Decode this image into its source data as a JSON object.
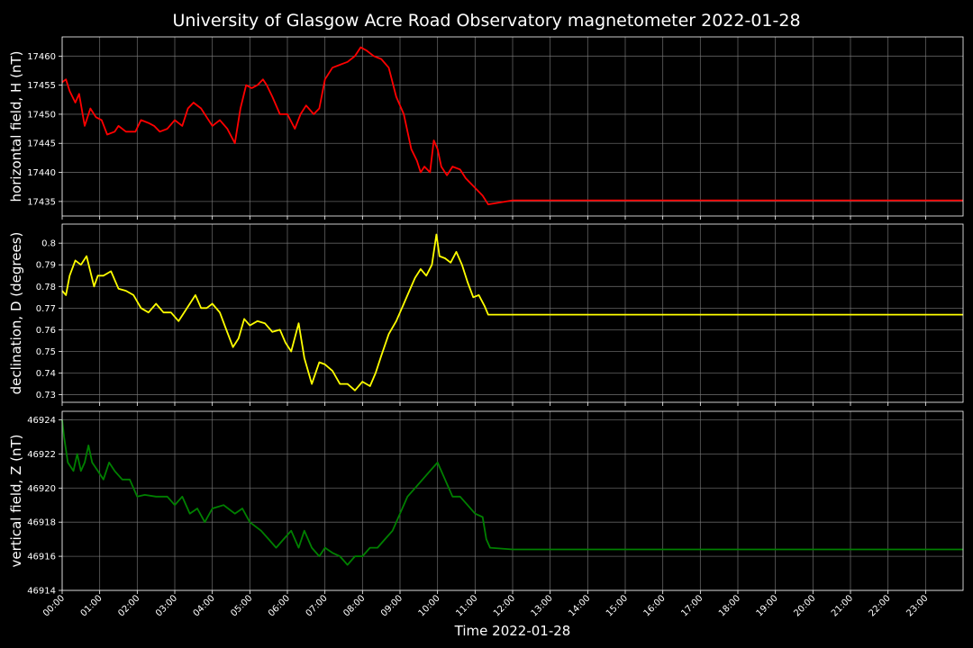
{
  "title": "University of Glasgow Acre Road Observatory magnetometer 2022-01-28",
  "xlabel": "Time 2022-01-28",
  "x_ticks": [
    "00:00",
    "01:00",
    "02:00",
    "03:00",
    "04:00",
    "05:00",
    "06:00",
    "07:00",
    "08:00",
    "09:00",
    "10:00",
    "11:00",
    "12:00",
    "13:00",
    "14:00",
    "15:00",
    "16:00",
    "17:00",
    "18:00",
    "19:00",
    "20:00",
    "21:00",
    "22:00",
    "23:00"
  ],
  "colors": {
    "background": "#000000",
    "grid": "#7a7a7a",
    "frame": "#ffffff",
    "text": "#ffffff"
  },
  "chart_data": [
    {
      "type": "line",
      "ylabel": "horizontal field, H (nT)",
      "color": "#ff0000",
      "ylim": [
        17432.5,
        17463.3
      ],
      "yticks": [
        17435,
        17440,
        17445,
        17450,
        17455,
        17460
      ],
      "x_unit": "hours since 00:00",
      "xlim": [
        0,
        24
      ],
      "grid": true,
      "x": [
        0,
        0.1,
        0.2,
        0.35,
        0.45,
        0.6,
        0.75,
        0.9,
        1.05,
        1.2,
        1.4,
        1.5,
        1.7,
        1.95,
        2.1,
        2.3,
        2.45,
        2.6,
        2.8,
        3.0,
        3.2,
        3.35,
        3.5,
        3.7,
        3.85,
        4.0,
        4.2,
        4.4,
        4.6,
        4.75,
        4.9,
        5.05,
        5.2,
        5.35,
        5.45,
        5.6,
        5.8,
        6.0,
        6.2,
        6.35,
        6.5,
        6.7,
        6.85,
        7.0,
        7.2,
        7.4,
        7.6,
        7.8,
        7.95,
        8.1,
        8.3,
        8.5,
        8.7,
        8.9,
        9.1,
        9.3,
        9.45,
        9.55,
        9.65,
        9.8,
        9.9,
        10.0,
        10.1,
        10.25,
        10.4,
        10.6,
        10.75,
        10.9,
        11.05,
        11.2,
        11.3,
        11.35,
        12,
        16,
        20,
        24
      ],
      "y": [
        17455.5,
        17456,
        17454,
        17452,
        17453.5,
        17448,
        17451,
        17449.5,
        17449,
        17446.5,
        17447,
        17448,
        17447,
        17447,
        17449,
        17448.5,
        17448,
        17447,
        17447.5,
        17449,
        17448,
        17451,
        17452,
        17451,
        17449.5,
        17448,
        17449,
        17447.5,
        17445,
        17451,
        17455,
        17454.5,
        17455,
        17456,
        17455,
        17453,
        17450,
        17450,
        17447.5,
        17450,
        17451.5,
        17450,
        17451,
        17456,
        17458,
        17458.5,
        17459,
        17460,
        17461.5,
        17461,
        17460,
        17459.5,
        17458,
        17453,
        17450,
        17444,
        17442,
        17440,
        17441,
        17440,
        17445.5,
        17444,
        17441,
        17439.5,
        17441,
        17440.5,
        17439,
        17438,
        17437,
        17436,
        17435,
        17434.5,
        17435.2,
        17435.2,
        17435.2,
        17435.2
      ]
    },
    {
      "type": "line",
      "ylabel": "declination, D (degrees)",
      "color": "#ffff00",
      "ylim": [
        0.7265,
        0.8088
      ],
      "yticks": [
        0.73,
        0.74,
        0.75,
        0.76,
        0.77,
        0.78,
        0.79,
        0.8
      ],
      "x_unit": "hours since 00:00",
      "xlim": [
        0,
        24
      ],
      "grid": true,
      "x": [
        0,
        0.1,
        0.2,
        0.35,
        0.5,
        0.65,
        0.85,
        0.95,
        1.1,
        1.3,
        1.5,
        1.7,
        1.9,
        2.1,
        2.3,
        2.5,
        2.7,
        2.9,
        3.1,
        3.25,
        3.4,
        3.55,
        3.7,
        3.85,
        4.0,
        4.2,
        4.35,
        4.55,
        4.7,
        4.85,
        5.0,
        5.2,
        5.4,
        5.6,
        5.8,
        5.95,
        6.1,
        6.3,
        6.45,
        6.65,
        6.85,
        7.0,
        7.2,
        7.4,
        7.6,
        7.8,
        8.0,
        8.2,
        8.35,
        8.5,
        8.7,
        8.9,
        9.1,
        9.25,
        9.4,
        9.55,
        9.7,
        9.85,
        9.97,
        10.05,
        10.2,
        10.35,
        10.5,
        10.65,
        10.8,
        10.95,
        11.1,
        11.25,
        11.35,
        12,
        16,
        20,
        24
      ],
      "y": [
        0.778,
        0.776,
        0.785,
        0.792,
        0.79,
        0.794,
        0.78,
        0.785,
        0.785,
        0.787,
        0.779,
        0.778,
        0.776,
        0.77,
        0.768,
        0.772,
        0.768,
        0.768,
        0.764,
        0.768,
        0.772,
        0.776,
        0.77,
        0.77,
        0.772,
        0.768,
        0.761,
        0.752,
        0.756,
        0.765,
        0.762,
        0.764,
        0.763,
        0.759,
        0.76,
        0.754,
        0.75,
        0.763,
        0.747,
        0.735,
        0.745,
        0.744,
        0.741,
        0.735,
        0.735,
        0.732,
        0.736,
        0.734,
        0.74,
        0.748,
        0.758,
        0.764,
        0.772,
        0.778,
        0.784,
        0.788,
        0.785,
        0.79,
        0.804,
        0.794,
        0.793,
        0.791,
        0.796,
        0.79,
        0.782,
        0.775,
        0.776,
        0.771,
        0.767,
        0.767,
        0.767,
        0.767,
        0.767
      ]
    },
    {
      "type": "line",
      "ylabel": "vertical field, Z (nT)",
      "color": "#008000",
      "ylim": [
        46914,
        46924.5
      ],
      "yticks": [
        46914,
        46916,
        46918,
        46920,
        46922,
        46924
      ],
      "x_unit": "hours since 00:00",
      "xlim": [
        0,
        24
      ],
      "grid": true,
      "x": [
        0,
        0.05,
        0.15,
        0.3,
        0.4,
        0.5,
        0.6,
        0.7,
        0.8,
        0.95,
        1.1,
        1.25,
        1.4,
        1.6,
        1.8,
        2.0,
        2.2,
        2.5,
        2.8,
        3.0,
        3.2,
        3.4,
        3.6,
        3.8,
        4.0,
        4.3,
        4.6,
        4.8,
        5.0,
        5.3,
        5.5,
        5.7,
        5.9,
        6.1,
        6.3,
        6.45,
        6.65,
        6.85,
        7.0,
        7.2,
        7.4,
        7.6,
        7.8,
        8.0,
        8.2,
        8.4,
        8.6,
        8.8,
        9.0,
        9.2,
        9.4,
        9.6,
        9.8,
        10.0,
        10.2,
        10.4,
        10.6,
        10.8,
        11.0,
        11.2,
        11.3,
        11.4,
        12,
        16,
        20,
        24
      ],
      "y": [
        46924,
        46923,
        46921.5,
        46921,
        46922,
        46921,
        46921.5,
        46922.5,
        46921.5,
        46921,
        46920.5,
        46921.5,
        46921,
        46920.5,
        46920.5,
        46919.5,
        46919.6,
        46919.5,
        46919.5,
        46919,
        46919.5,
        46918.5,
        46918.8,
        46918,
        46918.8,
        46919,
        46918.5,
        46918.8,
        46918,
        46917.5,
        46917,
        46916.5,
        46917,
        46917.5,
        46916.5,
        46917.5,
        46916.5,
        46916,
        46916.5,
        46916.2,
        46916,
        46915.5,
        46916,
        46916,
        46916.5,
        46916.5,
        46917,
        46917.5,
        46918.5,
        46919.5,
        46920,
        46920.5,
        46921,
        46921.5,
        46920.5,
        46919.5,
        46919.5,
        46919,
        46918.5,
        46918.3,
        46917,
        46916.5,
        46916.4,
        46916.4,
        46916.4,
        46916.4
      ]
    }
  ]
}
